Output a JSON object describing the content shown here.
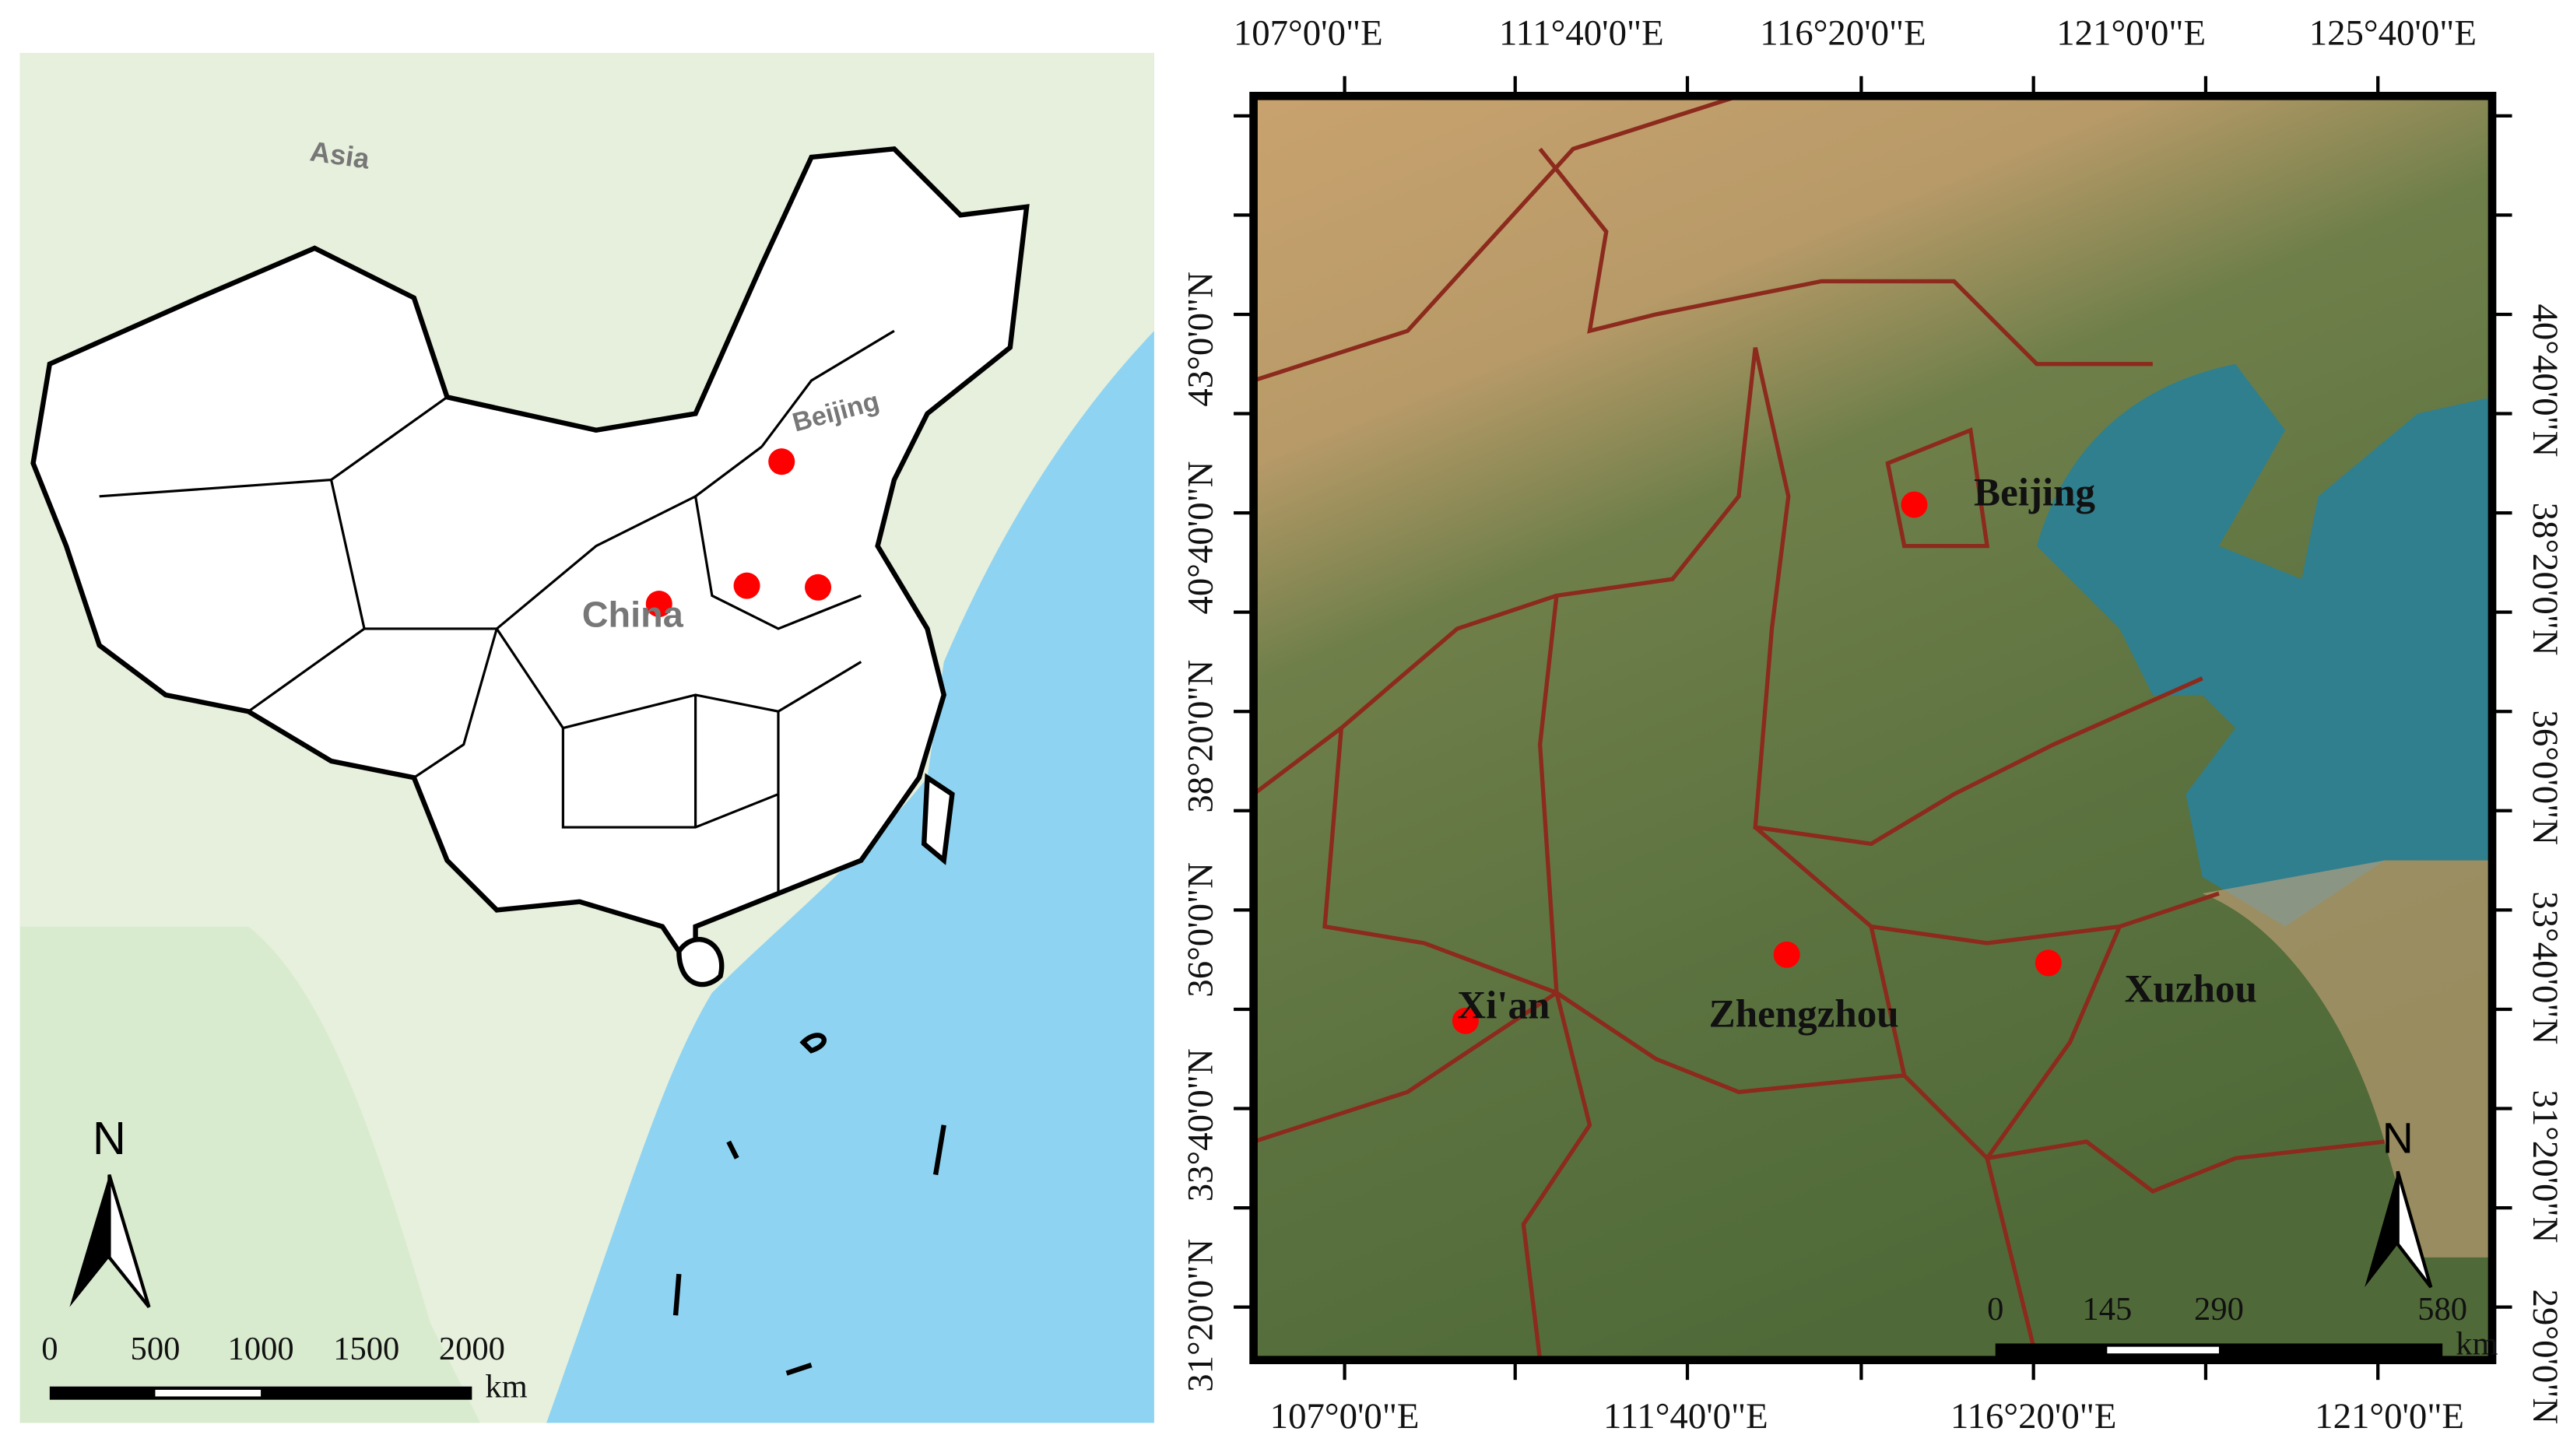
{
  "left_map": {
    "labels": {
      "asia": "Asia",
      "beijing": "Beijing",
      "china": "China"
    },
    "north": "N",
    "scale": {
      "ticks": [
        0,
        500,
        1000,
        1500,
        2000
      ],
      "unit": "km"
    }
  },
  "right_map": {
    "top_ticks": [
      "107°0'0\"E",
      "111°40'0\"E",
      "116°20'0\"E",
      "121°0'0\"E",
      "125°40'0\"E"
    ],
    "bottom_ticks": [
      "107°0'0\"E",
      "111°40'0\"E",
      "116°20'0\"E",
      "121°0'0\"E"
    ],
    "left_ticks": [
      "31°20'0\"N",
      "33°40'0\"N",
      "36°0'0\"N",
      "38°20'0\"N",
      "40°40'0\"N",
      "43°0'0\"N"
    ],
    "right_ticks": [
      "29°0'0\"N",
      "31°20'0\"N",
      "33°40'0\"N",
      "36°0'0\"N",
      "38°20'0\"N",
      "40°40'0\"N"
    ],
    "cities": [
      "Beijing",
      "Xi'an",
      "Zhengzhou",
      "Xuzhou"
    ],
    "north": "N",
    "scale": {
      "ticks": [
        0,
        145,
        290,
        580
      ],
      "unit": "km"
    }
  }
}
